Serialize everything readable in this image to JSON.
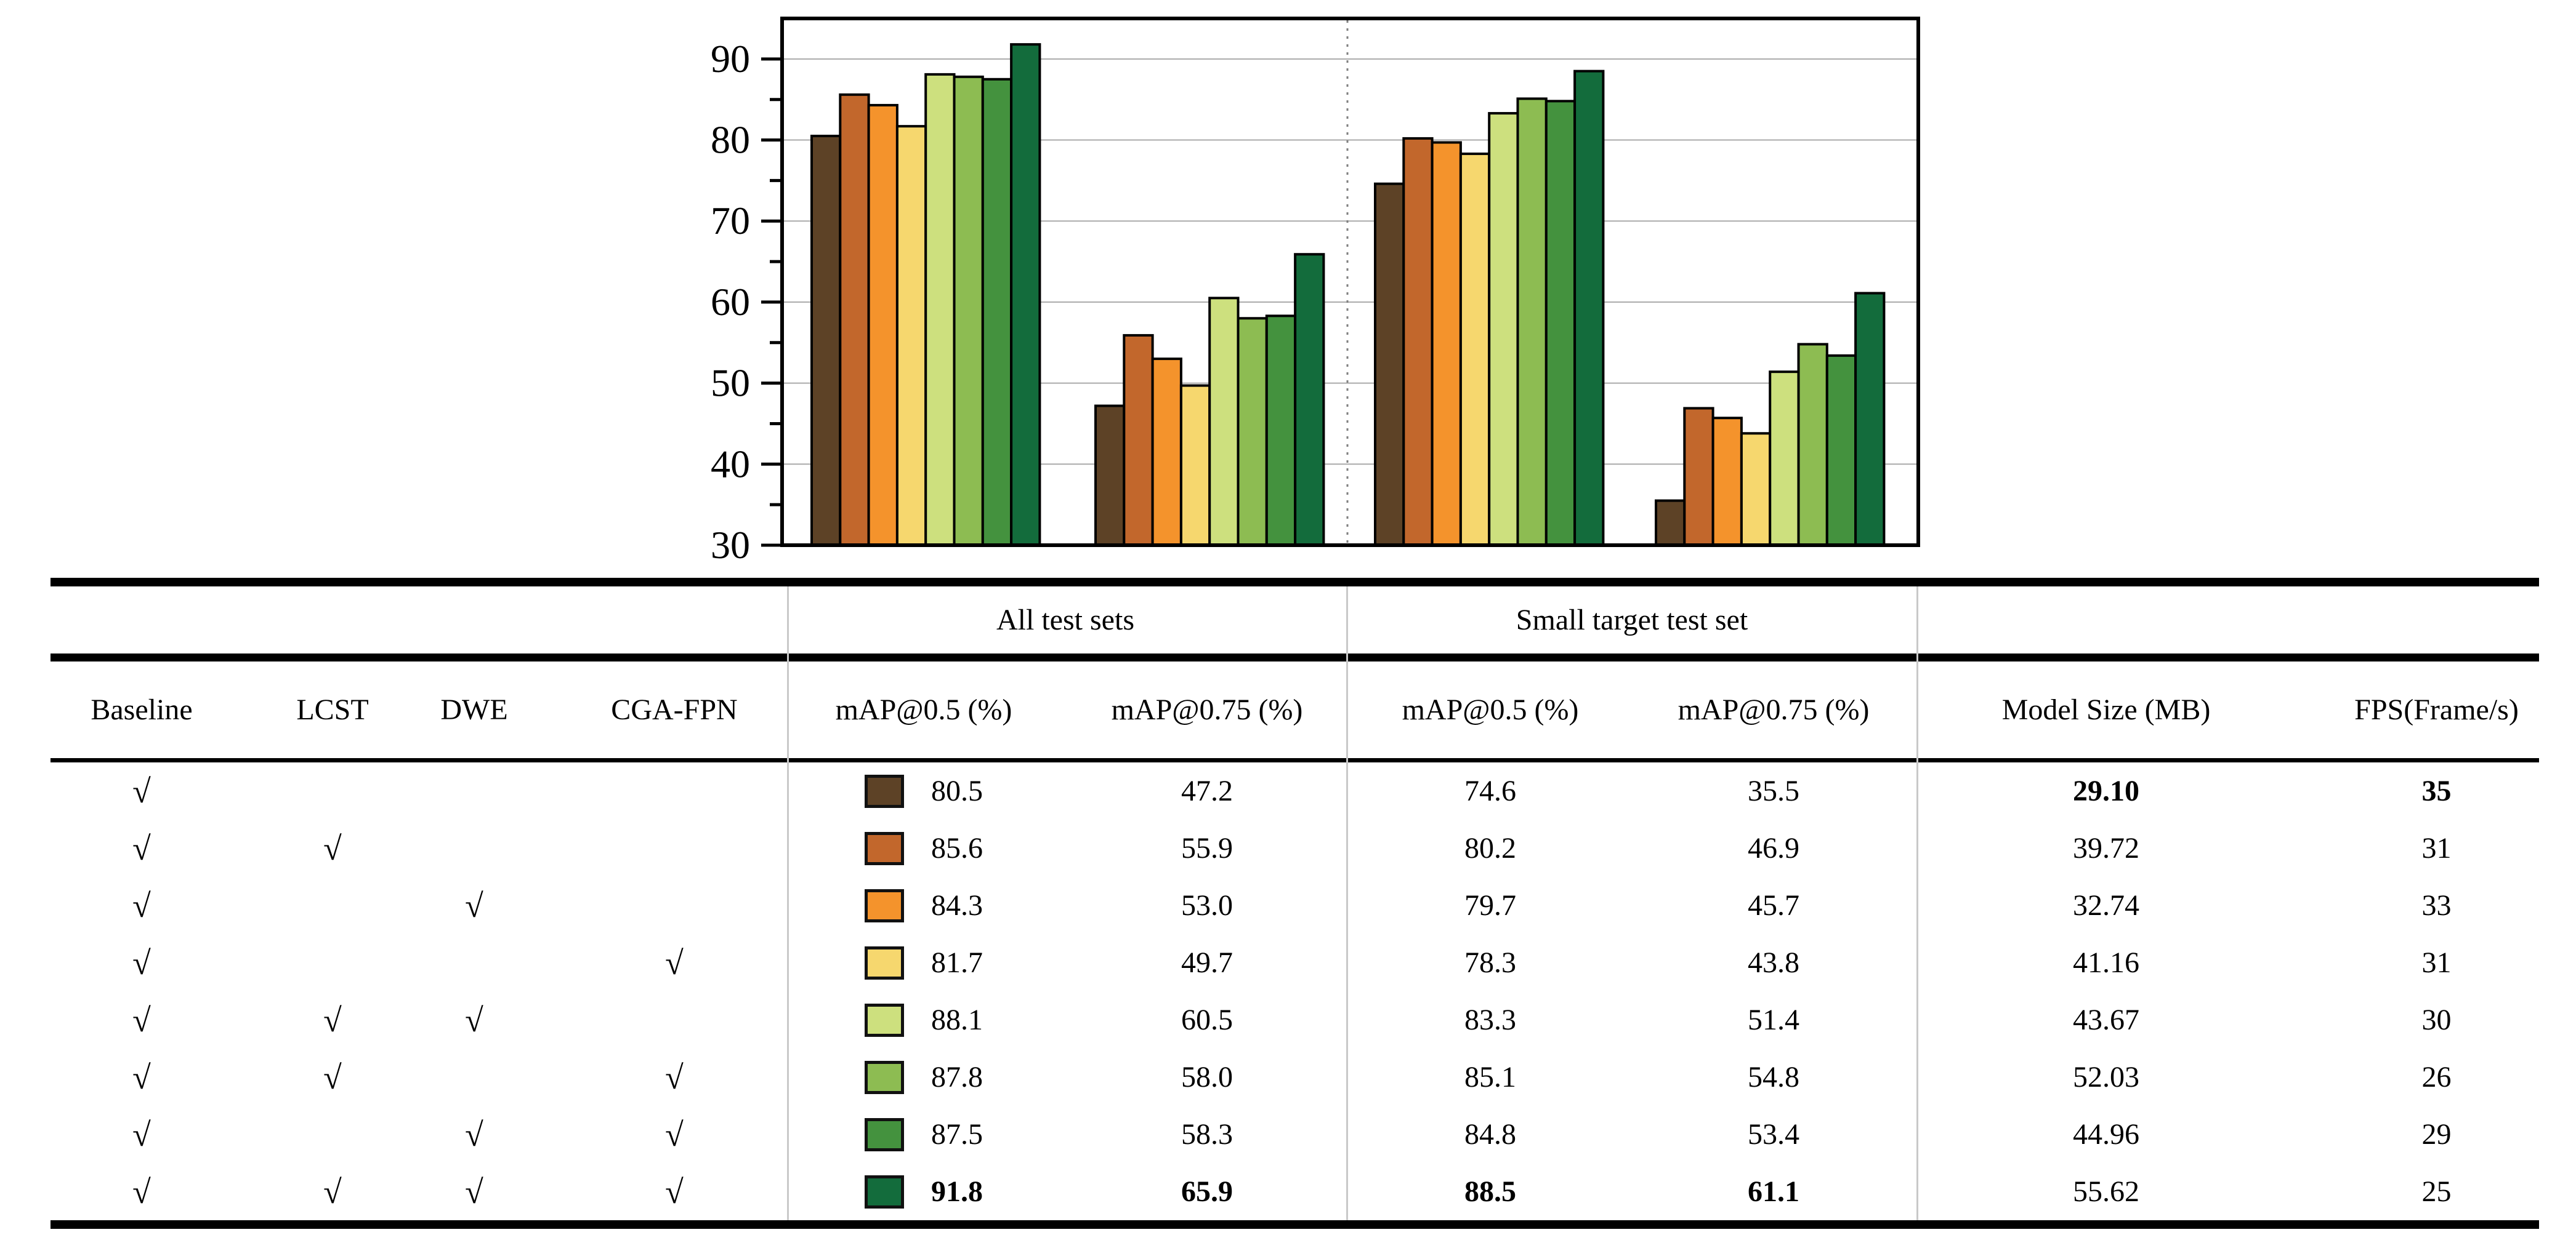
{
  "chart_data": {
    "type": "bar",
    "title": "",
    "xlabel": "",
    "ylabel": "",
    "ylim": [
      30,
      95
    ],
    "yticks": [
      30,
      40,
      50,
      60,
      70,
      80,
      90
    ],
    "yticks_minor": [
      35,
      45,
      55,
      65,
      75,
      85
    ],
    "grid": true,
    "legend_position": "none",
    "axis_color": "#000000",
    "gridline_color": "#aaaaaa",
    "group_divider_after_category": 2,
    "categories": [
      "All test sets mAP@0.5 (%)",
      "All test sets mAP@0.75 (%)",
      "Small target test set mAP@0.5 (%)",
      "Small target test set mAP@0.75 (%)"
    ],
    "series": [
      {
        "name": "Baseline",
        "color": "#5D4226",
        "values": [
          80.5,
          47.2,
          74.6,
          35.5
        ]
      },
      {
        "name": "Baseline + LCST",
        "color": "#C2672C",
        "values": [
          85.6,
          55.9,
          80.2,
          46.9
        ]
      },
      {
        "name": "Baseline + DWE",
        "color": "#F4932C",
        "values": [
          84.3,
          53.0,
          79.7,
          45.7
        ]
      },
      {
        "name": "Baseline + CGA-FPN",
        "color": "#F6D76E",
        "values": [
          81.7,
          49.7,
          78.3,
          43.8
        ]
      },
      {
        "name": "Baseline + LCST + DWE",
        "color": "#CDE07E",
        "values": [
          88.1,
          60.5,
          83.3,
          51.4
        ]
      },
      {
        "name": "Baseline + LCST + CGA-FPN",
        "color": "#8DBC52",
        "values": [
          87.8,
          58.0,
          85.1,
          54.8
        ]
      },
      {
        "name": "Baseline + DWE + CGA-FPN",
        "color": "#44923E",
        "values": [
          87.5,
          58.3,
          84.8,
          53.4
        ]
      },
      {
        "name": "Baseline + LCST + DWE + CGA-FPN",
        "color": "#136C3C",
        "values": [
          91.8,
          65.9,
          88.5,
          61.1
        ]
      }
    ]
  },
  "table": {
    "group_headers": [
      {
        "label": "All test sets"
      },
      {
        "label": "Small target test set"
      }
    ],
    "columns": [
      "Baseline",
      "LCST",
      "DWE",
      "CGA-FPN",
      "mAP@0.5 (%)",
      "mAP@0.75 (%)",
      "mAP@0.5 (%)",
      "mAP@0.75 (%)",
      "Model Size (MB)",
      "FPS(Frame/s)"
    ],
    "check_glyph": "√",
    "rows": [
      {
        "checks": [
          true,
          false,
          false,
          false
        ],
        "swatch": "#5D4226",
        "map05_all": "80.5",
        "map075_all": "47.2",
        "map05_small": "74.6",
        "map075_small": "35.5",
        "model_size": "29.10",
        "fps": "35",
        "bold": [
          "model_size",
          "fps"
        ]
      },
      {
        "checks": [
          true,
          true,
          false,
          false
        ],
        "swatch": "#C2672C",
        "map05_all": "85.6",
        "map075_all": "55.9",
        "map05_small": "80.2",
        "map075_small": "46.9",
        "model_size": "39.72",
        "fps": "31",
        "bold": []
      },
      {
        "checks": [
          true,
          false,
          true,
          false
        ],
        "swatch": "#F4932C",
        "map05_all": "84.3",
        "map075_all": "53.0",
        "map05_small": "79.7",
        "map075_small": "45.7",
        "model_size": "32.74",
        "fps": "33",
        "bold": []
      },
      {
        "checks": [
          true,
          false,
          false,
          true
        ],
        "swatch": "#F6D76E",
        "map05_all": "81.7",
        "map075_all": "49.7",
        "map05_small": "78.3",
        "map075_small": "43.8",
        "model_size": "41.16",
        "fps": "31",
        "bold": []
      },
      {
        "checks": [
          true,
          true,
          true,
          false
        ],
        "swatch": "#CDE07E",
        "map05_all": "88.1",
        "map075_all": "60.5",
        "map05_small": "83.3",
        "map075_small": "51.4",
        "model_size": "43.67",
        "fps": "30",
        "bold": []
      },
      {
        "checks": [
          true,
          true,
          false,
          true
        ],
        "swatch": "#8DBC52",
        "map05_all": "87.8",
        "map075_all": "58.0",
        "map05_small": "85.1",
        "map075_small": "54.8",
        "model_size": "52.03",
        "fps": "26",
        "bold": []
      },
      {
        "checks": [
          true,
          false,
          true,
          true
        ],
        "swatch": "#44923E",
        "map05_all": "87.5",
        "map075_all": "58.3",
        "map05_small": "84.8",
        "map075_small": "53.4",
        "model_size": "44.96",
        "fps": "29",
        "bold": []
      },
      {
        "checks": [
          true,
          true,
          true,
          true
        ],
        "swatch": "#136C3C",
        "map05_all": "91.8",
        "map075_all": "65.9",
        "map05_small": "88.5",
        "map075_small": "61.1",
        "model_size": "55.62",
        "fps": "25",
        "bold": [
          "map05_all",
          "map075_all",
          "map05_small",
          "map075_small"
        ]
      }
    ]
  }
}
